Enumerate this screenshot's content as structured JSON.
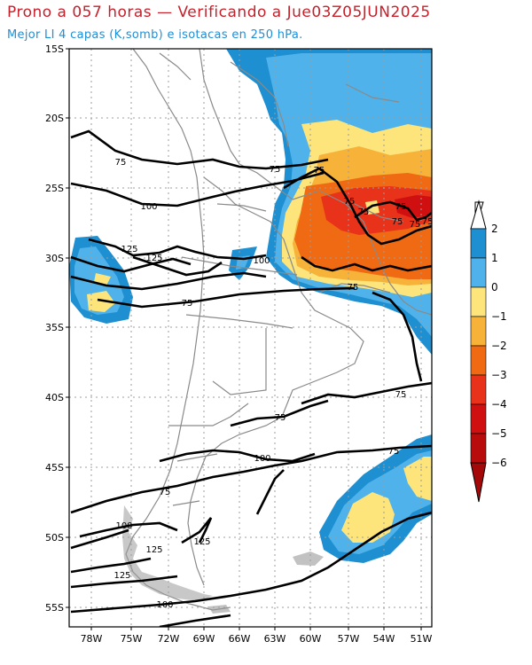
{
  "header": {
    "title": "Prono a 057 horas — Verificando a Jue03Z05JUN2025",
    "subtitle": "Mejor LI 4 capas (K,somb) e isotacas en 250 hPa."
  },
  "map": {
    "lat_ticks": [
      "15S",
      "20S",
      "25S",
      "30S",
      "35S",
      "40S",
      "45S",
      "50S",
      "55S"
    ],
    "lon_ticks": [
      "78W",
      "75W",
      "72W",
      "69W",
      "66W",
      "63W",
      "60W",
      "57W",
      "54W",
      "51W"
    ],
    "isotach_labels": [
      "75",
      "75",
      "75",
      "75",
      "75",
      "75",
      "75",
      "75",
      "75",
      "75",
      "75",
      "75",
      "75",
      "75",
      "75",
      "100",
      "100",
      "100",
      "100",
      "100",
      "125",
      "125",
      "125",
      "125",
      "125"
    ],
    "colors": {
      "li_gt_1": "#1e8fd0",
      "li_0_1": "#4fb2ea",
      "li_m1_0": "#fde57c",
      "li_m2_m1": "#f7b23a",
      "li_m3_m2": "#ef6a12",
      "li_m4_m3": "#e8321a",
      "li_m5_m4": "#d01010",
      "li_lt_m5": "#a50808"
    }
  },
  "colorbar": {
    "labels": [
      "2",
      "1",
      "0",
      "−1",
      "−2",
      "−3",
      "−4",
      "−5",
      "−6"
    ]
  }
}
